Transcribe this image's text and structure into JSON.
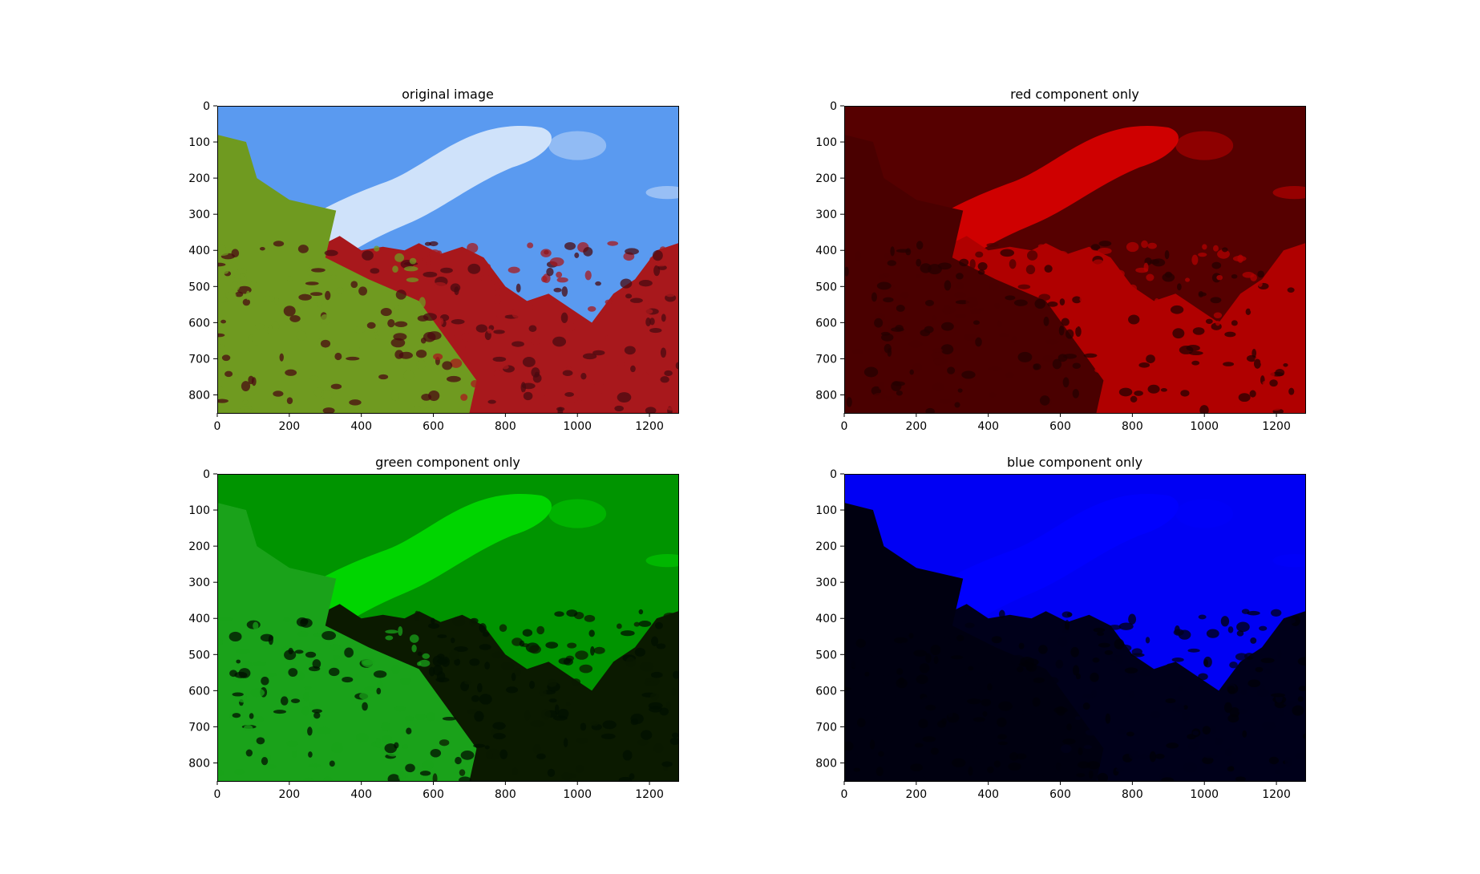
{
  "figure": {
    "background": "#ffffff"
  },
  "chart_data": [
    {
      "type": "image",
      "title": "original image",
      "channel": "original",
      "xlim": [
        0,
        1280
      ],
      "ylim": [
        850,
        0
      ],
      "x_ticks": [
        0,
        200,
        400,
        600,
        800,
        1000,
        1200
      ],
      "y_ticks": [
        0,
        100,
        200,
        300,
        400,
        500,
        600,
        700,
        800
      ],
      "x_tick_labels": [
        "0",
        "200",
        "400",
        "600",
        "800",
        "1000",
        "1200"
      ],
      "y_tick_labels": [
        "0",
        "100",
        "200",
        "300",
        "400",
        "500",
        "600",
        "700",
        "800"
      ],
      "xlabel": "",
      "ylabel": "",
      "grid": false,
      "colors": {
        "sky": "#5a9af0",
        "cloud": "#e4eefb",
        "foliage_red": "#a8181c",
        "foliage_dark": "#4a0a10",
        "foliage_green": "#6f9a20"
      }
    },
    {
      "type": "image",
      "title": "red component only",
      "channel": "red",
      "xlim": [
        0,
        1280
      ],
      "ylim": [
        850,
        0
      ],
      "x_ticks": [
        0,
        200,
        400,
        600,
        800,
        1000,
        1200
      ],
      "y_ticks": [
        0,
        100,
        200,
        300,
        400,
        500,
        600,
        700,
        800
      ],
      "x_tick_labels": [
        "0",
        "200",
        "400",
        "600",
        "800",
        "1000",
        "1200"
      ],
      "y_tick_labels": [
        "0",
        "100",
        "200",
        "300",
        "400",
        "500",
        "600",
        "700",
        "800"
      ],
      "xlabel": "",
      "ylabel": "",
      "grid": false,
      "colors": {
        "sky": "#560000",
        "cloud": "#e40000",
        "foliage_red": "#b00000",
        "foliage_dark": "#260000",
        "foliage_green": "#4a0000"
      }
    },
    {
      "type": "image",
      "title": "green component only",
      "channel": "green",
      "xlim": [
        0,
        1280
      ],
      "ylim": [
        850,
        0
      ],
      "x_ticks": [
        0,
        200,
        400,
        600,
        800,
        1000,
        1200
      ],
      "y_ticks": [
        0,
        100,
        200,
        300,
        400,
        500,
        600,
        700,
        800
      ],
      "x_tick_labels": [
        "0",
        "200",
        "400",
        "600",
        "800",
        "1000",
        "1200"
      ],
      "y_tick_labels": [
        "0",
        "100",
        "200",
        "300",
        "400",
        "500",
        "600",
        "700",
        "800"
      ],
      "xlabel": "",
      "ylabel": "",
      "grid": false,
      "colors": {
        "sky": "#009400",
        "cloud": "#00e000",
        "foliage_red": "#0b1a00",
        "foliage_dark": "#021000",
        "foliage_green": "#1aa21a"
      }
    },
    {
      "type": "image",
      "title": "blue component only",
      "channel": "blue",
      "xlim": [
        0,
        1280
      ],
      "ylim": [
        850,
        0
      ],
      "x_ticks": [
        0,
        200,
        400,
        600,
        800,
        1000,
        1200
      ],
      "y_ticks": [
        0,
        100,
        200,
        300,
        400,
        500,
        600,
        700,
        800
      ],
      "x_tick_labels": [
        "0",
        "200",
        "400",
        "600",
        "800",
        "1000",
        "1200"
      ],
      "y_tick_labels": [
        "0",
        "100",
        "200",
        "300",
        "400",
        "500",
        "600",
        "700",
        "800"
      ],
      "xlabel": "",
      "ylabel": "",
      "grid": false,
      "colors": {
        "sky": "#0000f4",
        "cloud": "#0000ff",
        "foliage_red": "#00001a",
        "foliage_dark": "#000008",
        "foliage_green": "#000010"
      }
    }
  ]
}
